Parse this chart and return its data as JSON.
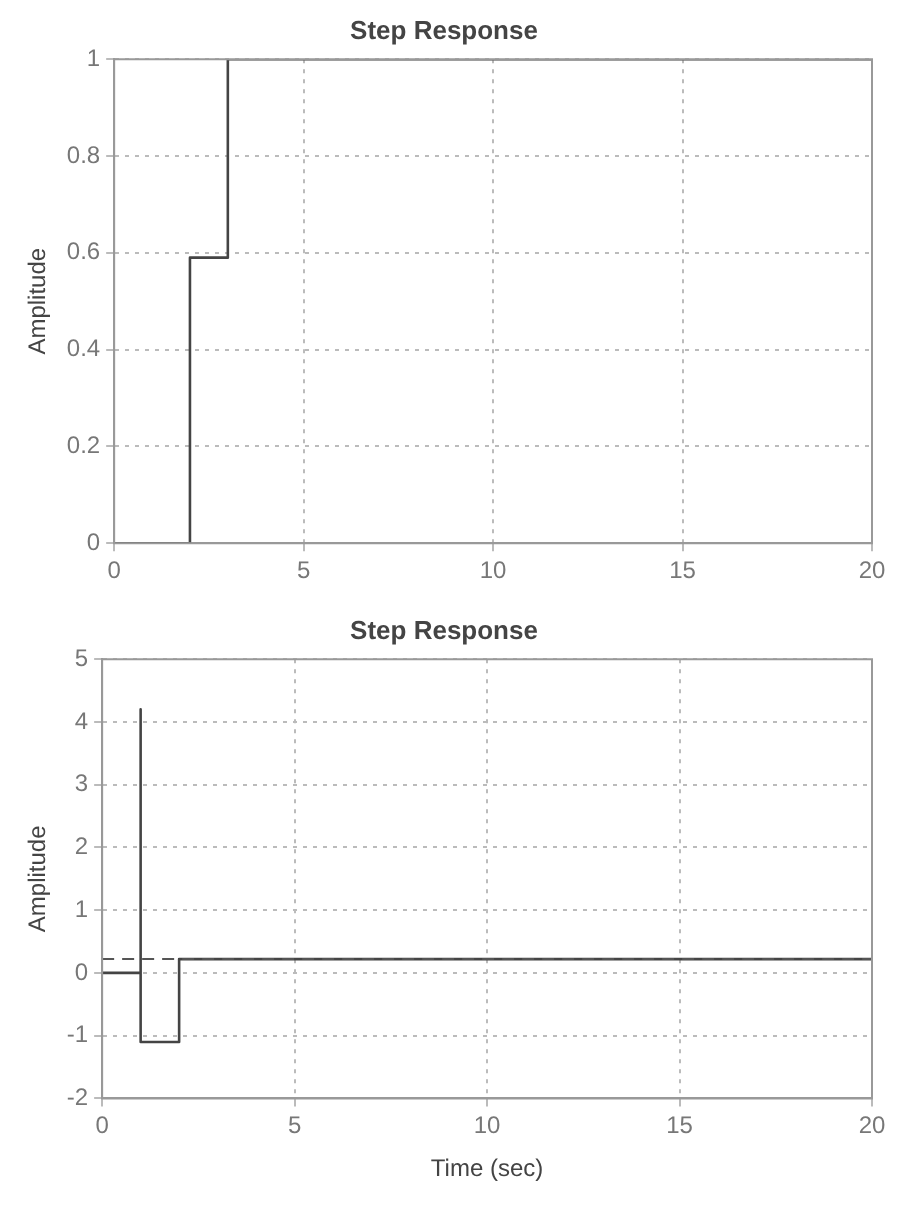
{
  "chart_data": [
    {
      "type": "step",
      "title": "Step Response",
      "ylabel": "Amplitude",
      "x": [
        0,
        2,
        3,
        20
      ],
      "series": [
        {
          "color": "#444444",
          "values": [
            0,
            0.59,
            1,
            1
          ]
        }
      ],
      "xlim": [
        0,
        20
      ],
      "xticks": [
        0,
        5,
        10,
        15,
        20
      ],
      "ylim": [
        0,
        1
      ],
      "yticks": [
        0,
        0.2,
        0.4,
        0.6,
        0.8,
        1
      ],
      "grid": true,
      "line_style": "solid"
    },
    {
      "type": "step",
      "title": "Step Response",
      "xlabel": "Time (sec)",
      "ylabel": "Amplitude",
      "x": [
        0,
        1,
        1,
        2,
        20
      ],
      "series": [
        {
          "color": "#444444",
          "values": [
            0,
            4.2,
            -1.1,
            0.22,
            0.22
          ]
        }
      ],
      "ref_lines": [
        {
          "axis": "y",
          "value": 0.22,
          "color": "#555555",
          "line_style": "dashed"
        }
      ],
      "xlim": [
        0,
        20
      ],
      "xticks": [
        0,
        5,
        10,
        15,
        20
      ],
      "ylim": [
        -2,
        5
      ],
      "yticks": [
        -2,
        -1,
        0,
        1,
        2,
        3,
        4,
        5
      ],
      "grid": true,
      "line_style": "solid"
    }
  ]
}
